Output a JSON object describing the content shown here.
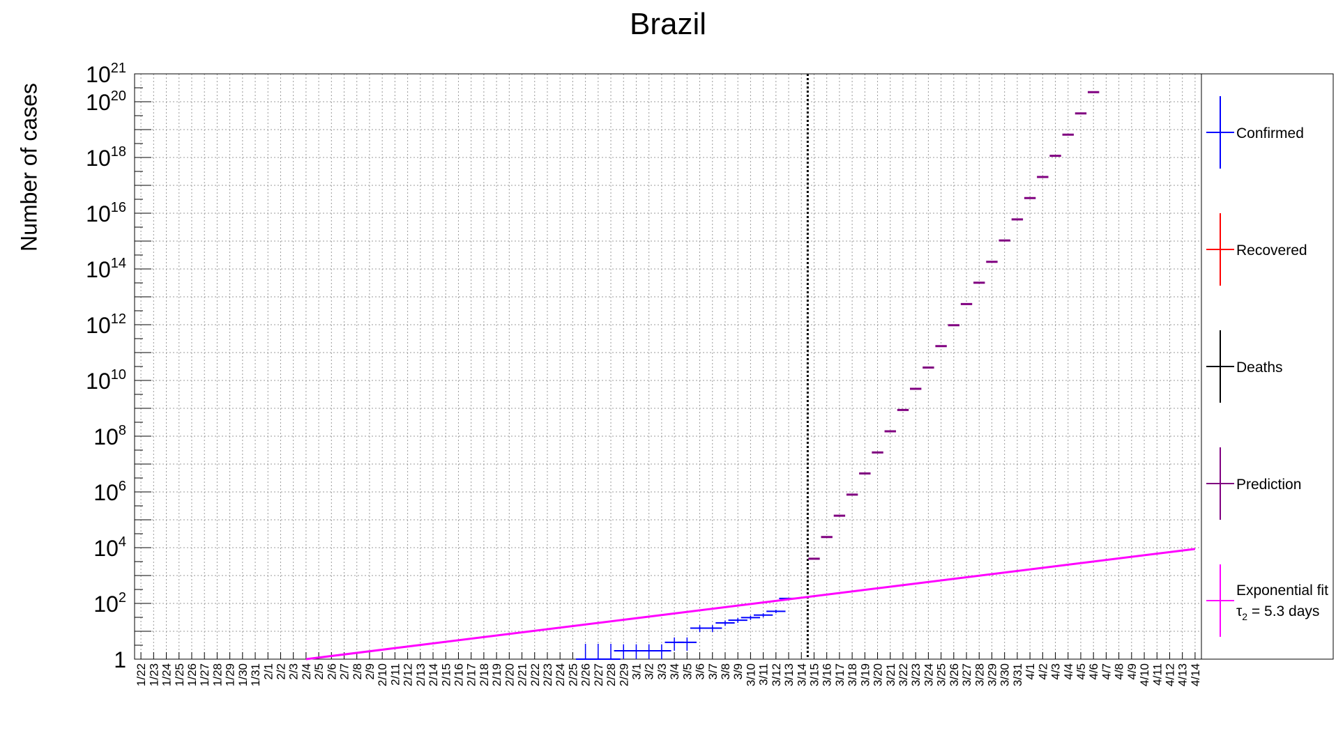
{
  "chart_data": {
    "type": "scatter",
    "title": "Brazil",
    "ylabel": "Number of cases",
    "xlabel": "",
    "yscale": "log",
    "ylim": [
      1,
      1e+21
    ],
    "grid": true,
    "legend_placement": "right",
    "x": [
      "1/22",
      "1/23",
      "1/24",
      "1/25",
      "1/26",
      "1/27",
      "1/28",
      "1/29",
      "1/30",
      "1/31",
      "2/1",
      "2/2",
      "2/3",
      "2/4",
      "2/5",
      "2/6",
      "2/7",
      "2/8",
      "2/9",
      "2/10",
      "2/11",
      "2/12",
      "2/13",
      "2/14",
      "2/15",
      "2/16",
      "2/17",
      "2/18",
      "2/19",
      "2/20",
      "2/21",
      "2/22",
      "2/23",
      "2/24",
      "2/25",
      "2/26",
      "2/27",
      "2/28",
      "2/29",
      "3/1",
      "3/2",
      "3/3",
      "3/4",
      "3/5",
      "3/6",
      "3/7",
      "3/8",
      "3/9",
      "3/10",
      "3/11",
      "3/12",
      "3/13",
      "3/14",
      "3/15",
      "3/16",
      "3/17",
      "3/18",
      "3/19",
      "3/20",
      "3/21",
      "3/22",
      "3/23",
      "3/24",
      "3/25",
      "3/26",
      "3/27",
      "3/28",
      "3/29",
      "3/30",
      "3/31",
      "4/1",
      "4/2",
      "4/3",
      "4/4",
      "4/5",
      "4/6",
      "4/7",
      "4/8",
      "4/9",
      "4/10",
      "4/11",
      "4/12",
      "4/13",
      "4/14"
    ],
    "yticks": [
      {
        "base": "1",
        "exp": ""
      },
      {
        "base": "10",
        "exp": "2"
      },
      {
        "base": "10",
        "exp": "4"
      },
      {
        "base": "10",
        "exp": "6"
      },
      {
        "base": "10",
        "exp": "8"
      },
      {
        "base": "10",
        "exp": "10"
      },
      {
        "base": "10",
        "exp": "12"
      },
      {
        "base": "10",
        "exp": "14"
      },
      {
        "base": "10",
        "exp": "16"
      },
      {
        "base": "10",
        "exp": "18"
      },
      {
        "base": "10",
        "exp": "20"
      },
      {
        "base": "10",
        "exp": "21"
      }
    ],
    "vertical_marker": {
      "between": [
        "3/14",
        "3/15"
      ],
      "style": "dotted"
    },
    "series": [
      {
        "name": "Confirmed",
        "color": "#0000ff",
        "points": [
          {
            "x": "2/26",
            "y": 1,
            "err": true
          },
          {
            "x": "2/27",
            "y": 1,
            "err": true
          },
          {
            "x": "2/28",
            "y": 1,
            "err": true
          },
          {
            "x": "2/29",
            "y": 2,
            "err": true
          },
          {
            "x": "3/1",
            "y": 2,
            "err": true
          },
          {
            "x": "3/2",
            "y": 2,
            "err": true
          },
          {
            "x": "3/3",
            "y": 2,
            "err": true
          },
          {
            "x": "3/4",
            "y": 4,
            "err": true
          },
          {
            "x": "3/5",
            "y": 4,
            "err": true
          },
          {
            "x": "3/6",
            "y": 13,
            "err": true
          },
          {
            "x": "3/7",
            "y": 13,
            "err": true
          },
          {
            "x": "3/8",
            "y": 20,
            "err": true
          },
          {
            "x": "3/9",
            "y": 25,
            "err": true
          },
          {
            "x": "3/10",
            "y": 31,
            "err": true
          },
          {
            "x": "3/11",
            "y": 38,
            "err": true
          },
          {
            "x": "3/12",
            "y": 52,
            "err": true
          },
          {
            "x": "3/13",
            "y": 151,
            "err": false
          }
        ]
      },
      {
        "name": "Recovered",
        "color": "#ff0000",
        "points": []
      },
      {
        "name": "Deaths",
        "color": "#000000",
        "points": []
      },
      {
        "name": "Prediction",
        "color": "#800080",
        "points": [
          {
            "x": "3/15",
            "y": 4000.0
          },
          {
            "x": "3/16",
            "y": 24000.0
          },
          {
            "x": "3/17",
            "y": 140000.0
          },
          {
            "x": "3/18",
            "y": 800000.0
          },
          {
            "x": "3/19",
            "y": 4600000.0
          },
          {
            "x": "3/20",
            "y": 26000000.0
          },
          {
            "x": "3/21",
            "y": 150000000.0
          },
          {
            "x": "3/22",
            "y": 870000000.0
          },
          {
            "x": "3/23",
            "y": 5000000000.0
          },
          {
            "x": "3/24",
            "y": 29000000000.0
          },
          {
            "x": "3/25",
            "y": 170000000000.0
          },
          {
            "x": "3/26",
            "y": 960000000000.0
          },
          {
            "x": "3/27",
            "y": 5500000000000.0
          },
          {
            "x": "3/28",
            "y": 32000000000000.0
          },
          {
            "x": "3/29",
            "y": 180000000000000.0
          },
          {
            "x": "3/30",
            "y": 1050000000000000.0
          },
          {
            "x": "3/31",
            "y": 6000000000000000.0
          },
          {
            "x": "4/1",
            "y": 3.5e+16
          },
          {
            "x": "4/2",
            "y": 2e+17
          },
          {
            "x": "4/3",
            "y": 1.15e+18
          },
          {
            "x": "4/4",
            "y": 6.6e+18
          },
          {
            "x": "4/5",
            "y": 3.8e+19
          },
          {
            "x": "4/6",
            "y": 2.2e+20
          }
        ]
      },
      {
        "name": "Exponential fit",
        "name_line2": "= 5.3 days",
        "tau_symbol": "τ",
        "tau_sub": "2",
        "color": "#ff00ff",
        "line": {
          "from": {
            "x": "2/4",
            "y": 1.0
          },
          "to": {
            "x": "4/14",
            "y": 9000
          }
        }
      }
    ]
  }
}
